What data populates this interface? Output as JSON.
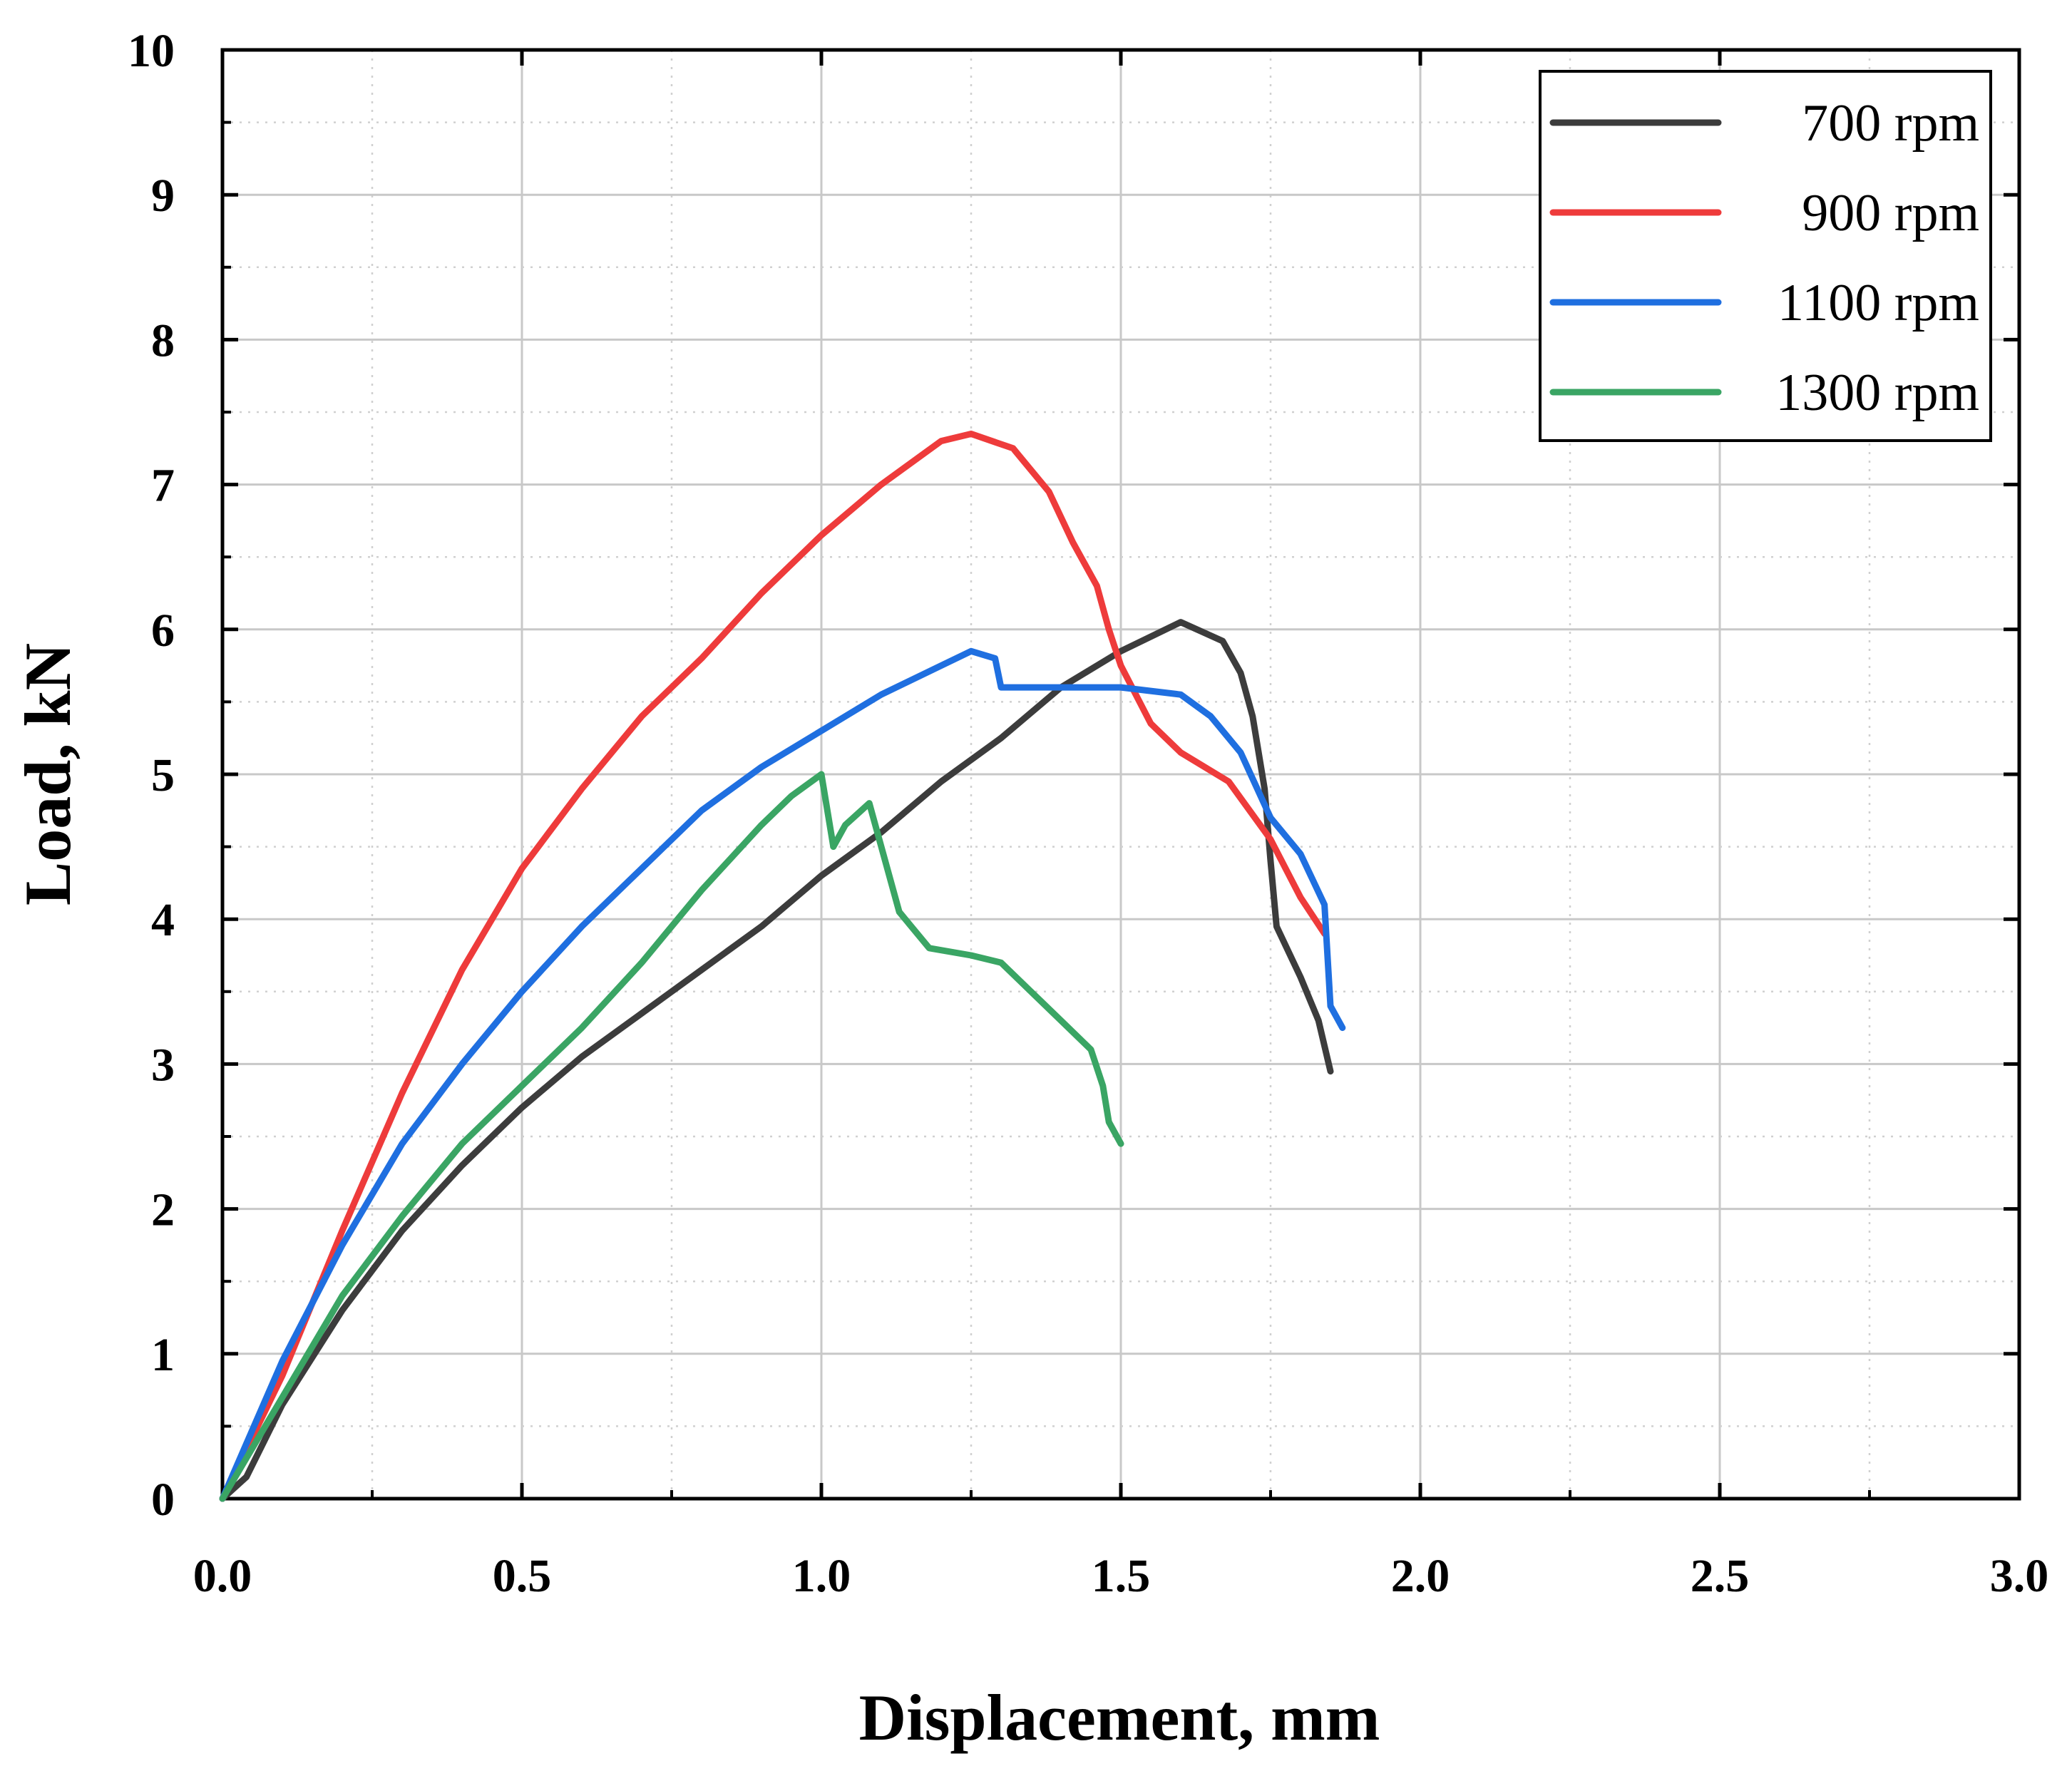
{
  "chart_data": {
    "type": "line",
    "title": "",
    "xlabel": "Displacement, mm",
    "ylabel": "Load, kN",
    "xlim": [
      0,
      3
    ],
    "ylim": [
      0,
      10
    ],
    "grid": true,
    "legend_position": "top-right",
    "x_ticks": [
      0.0,
      0.5,
      1.0,
      1.5,
      2.0,
      2.5,
      3.0
    ],
    "x_tick_labels": [
      "0.0",
      "0.5",
      "1.0",
      "1.5",
      "2.0",
      "2.5",
      "3.0"
    ],
    "y_ticks": [
      0,
      1,
      2,
      3,
      4,
      5,
      6,
      7,
      8,
      9,
      10
    ],
    "y_tick_labels": [
      "0",
      "1",
      "2",
      "3",
      "4",
      "5",
      "6",
      "7",
      "8",
      "9",
      "10"
    ],
    "series": [
      {
        "name": "700 rpm",
        "color": "#3c3c3c",
        "points": [
          [
            0.0,
            0.0
          ],
          [
            0.04,
            0.15
          ],
          [
            0.1,
            0.65
          ],
          [
            0.2,
            1.3
          ],
          [
            0.3,
            1.85
          ],
          [
            0.4,
            2.3
          ],
          [
            0.5,
            2.7
          ],
          [
            0.6,
            3.05
          ],
          [
            0.7,
            3.35
          ],
          [
            0.8,
            3.65
          ],
          [
            0.9,
            3.95
          ],
          [
            1.0,
            4.3
          ],
          [
            1.1,
            4.6
          ],
          [
            1.2,
            4.95
          ],
          [
            1.3,
            5.25
          ],
          [
            1.4,
            5.6
          ],
          [
            1.5,
            5.85
          ],
          [
            1.6,
            6.05
          ],
          [
            1.67,
            5.92
          ],
          [
            1.7,
            5.7
          ],
          [
            1.72,
            5.4
          ],
          [
            1.74,
            4.9
          ],
          [
            1.75,
            4.4
          ],
          [
            1.76,
            3.95
          ],
          [
            1.8,
            3.6
          ],
          [
            1.83,
            3.3
          ],
          [
            1.85,
            2.95
          ]
        ]
      },
      {
        "name": "900 rpm",
        "color": "#ee3b3b",
        "points": [
          [
            0.0,
            0.0
          ],
          [
            0.1,
            0.85
          ],
          [
            0.2,
            1.85
          ],
          [
            0.3,
            2.8
          ],
          [
            0.4,
            3.65
          ],
          [
            0.5,
            4.35
          ],
          [
            0.6,
            4.9
          ],
          [
            0.7,
            5.4
          ],
          [
            0.8,
            5.8
          ],
          [
            0.9,
            6.25
          ],
          [
            1.0,
            6.65
          ],
          [
            1.1,
            7.0
          ],
          [
            1.2,
            7.3
          ],
          [
            1.25,
            7.35
          ],
          [
            1.32,
            7.25
          ],
          [
            1.38,
            6.95
          ],
          [
            1.42,
            6.6
          ],
          [
            1.46,
            6.3
          ],
          [
            1.48,
            6.0
          ],
          [
            1.5,
            5.75
          ],
          [
            1.55,
            5.35
          ],
          [
            1.6,
            5.15
          ],
          [
            1.68,
            4.95
          ],
          [
            1.75,
            4.55
          ],
          [
            1.8,
            4.15
          ],
          [
            1.84,
            3.9
          ]
        ]
      },
      {
        "name": "1100 rpm",
        "color": "#1f6fe0",
        "points": [
          [
            0.0,
            0.0
          ],
          [
            0.1,
            0.95
          ],
          [
            0.2,
            1.75
          ],
          [
            0.3,
            2.45
          ],
          [
            0.4,
            3.0
          ],
          [
            0.5,
            3.5
          ],
          [
            0.6,
            3.95
          ],
          [
            0.7,
            4.35
          ],
          [
            0.8,
            4.75
          ],
          [
            0.9,
            5.05
          ],
          [
            1.0,
            5.3
          ],
          [
            1.1,
            5.55
          ],
          [
            1.2,
            5.75
          ],
          [
            1.25,
            5.85
          ],
          [
            1.29,
            5.8
          ],
          [
            1.3,
            5.6
          ],
          [
            1.4,
            5.6
          ],
          [
            1.5,
            5.6
          ],
          [
            1.6,
            5.55
          ],
          [
            1.65,
            5.4
          ],
          [
            1.7,
            5.15
          ],
          [
            1.75,
            4.7
          ],
          [
            1.8,
            4.45
          ],
          [
            1.84,
            4.1
          ],
          [
            1.85,
            3.4
          ],
          [
            1.87,
            3.25
          ]
        ]
      },
      {
        "name": "1300 rpm",
        "color": "#3aa564",
        "points": [
          [
            0.0,
            0.0
          ],
          [
            0.1,
            0.7
          ],
          [
            0.2,
            1.4
          ],
          [
            0.3,
            1.95
          ],
          [
            0.4,
            2.45
          ],
          [
            0.5,
            2.85
          ],
          [
            0.6,
            3.25
          ],
          [
            0.7,
            3.7
          ],
          [
            0.8,
            4.2
          ],
          [
            0.9,
            4.65
          ],
          [
            0.95,
            4.85
          ],
          [
            1.0,
            5.0
          ],
          [
            1.02,
            4.5
          ],
          [
            1.04,
            4.65
          ],
          [
            1.08,
            4.8
          ],
          [
            1.1,
            4.5
          ],
          [
            1.13,
            4.05
          ],
          [
            1.18,
            3.8
          ],
          [
            1.25,
            3.75
          ],
          [
            1.3,
            3.7
          ],
          [
            1.35,
            3.5
          ],
          [
            1.4,
            3.3
          ],
          [
            1.45,
            3.1
          ],
          [
            1.47,
            2.85
          ],
          [
            1.48,
            2.6
          ],
          [
            1.5,
            2.45
          ]
        ]
      }
    ]
  }
}
